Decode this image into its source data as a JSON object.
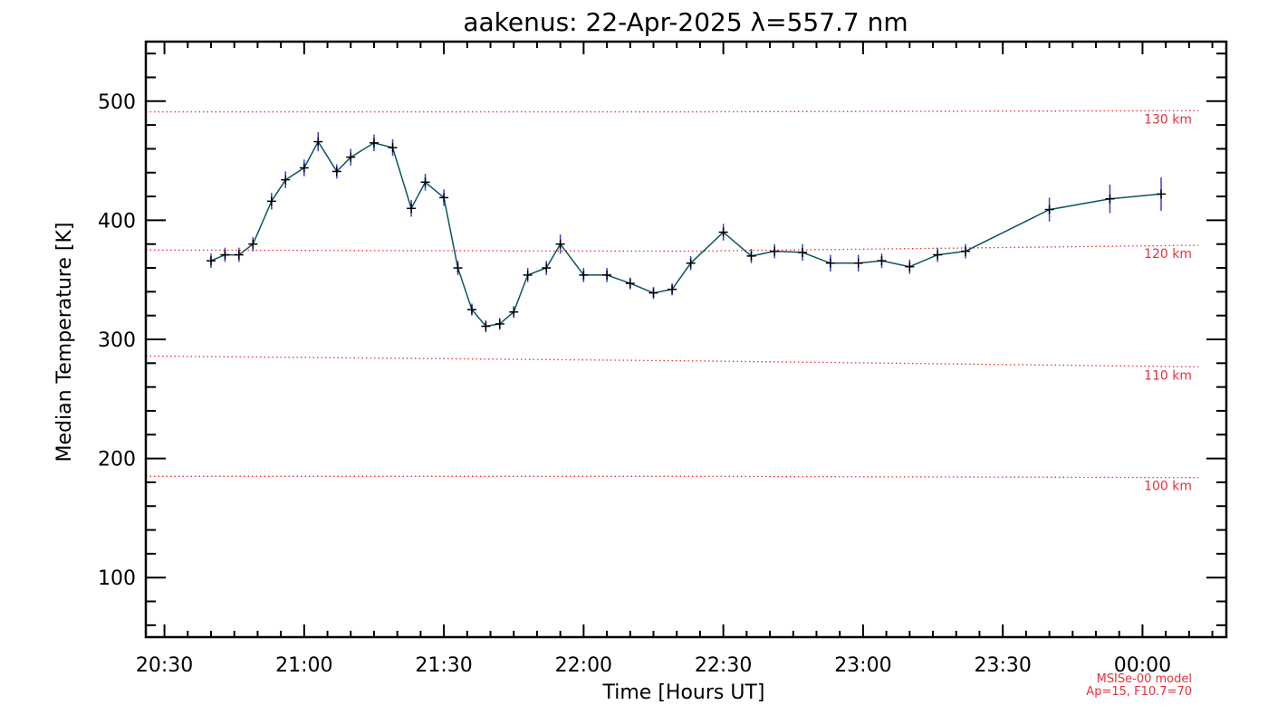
{
  "chart_data": {
    "type": "line",
    "title": "aakenus: 22-Apr-2025 λ=557.7 nm",
    "xlabel": "Time [Hours UT]",
    "ylabel": "Median Temperature [K]",
    "xlim": [
      "20:26",
      "00:18"
    ],
    "ylim": [
      50,
      550
    ],
    "x_ticks": [
      "20:30",
      "21:00",
      "21:30",
      "22:00",
      "22:30",
      "23:00",
      "23:30",
      "00:00"
    ],
    "y_ticks": [
      100,
      200,
      300,
      400,
      500
    ],
    "series": [
      {
        "color": "#0b5560",
        "marker_color": "#000000",
        "errorbar_color": "#3a3fd8",
        "x": [
          "20:40",
          "20:43",
          "20:46",
          "20:49",
          "20:53",
          "20:56",
          "21:00",
          "21:03",
          "21:07",
          "21:10",
          "21:15",
          "21:19",
          "21:23",
          "21:26",
          "21:30",
          "21:33",
          "21:36",
          "21:39",
          "21:42",
          "21:45",
          "21:48",
          "21:52",
          "21:55",
          "22:00",
          "22:05",
          "22:10",
          "22:15",
          "22:19",
          "22:23",
          "22:30",
          "22:36",
          "22:41",
          "22:47",
          "22:53",
          "22:59",
          "23:04",
          "23:10",
          "23:16",
          "23:22",
          "23:40",
          "23:53",
          "00:04"
        ],
        "y": [
          366,
          371,
          371,
          380,
          416,
          434,
          444,
          466,
          441,
          453,
          465,
          461,
          410,
          432,
          419,
          360,
          325,
          311,
          313,
          323,
          354,
          360,
          380,
          354,
          354,
          347,
          339,
          342,
          364,
          390,
          370,
          374,
          373,
          364,
          364,
          366,
          361,
          371,
          374,
          409,
          418,
          422
        ],
        "err": [
          6,
          6,
          6,
          6,
          7,
          7,
          7,
          8,
          6,
          7,
          7,
          7,
          7,
          7,
          7,
          6,
          5,
          5,
          5,
          5,
          6,
          6,
          8,
          6,
          6,
          5,
          5,
          5,
          6,
          7,
          6,
          6,
          7,
          7,
          7,
          6,
          6,
          6,
          6,
          10,
          12,
          14
        ]
      }
    ],
    "reference_lines": [
      {
        "label": "130 km",
        "y": [
          491,
          491,
          492
        ]
      },
      {
        "label": "120 km",
        "y": [
          375,
          374,
          379
        ]
      },
      {
        "label": "110 km",
        "y": [
          286,
          282,
          277
        ]
      },
      {
        "label": "100 km",
        "y": [
          185,
          185,
          184
        ]
      }
    ],
    "reference_color": "#e8313a",
    "grid": false,
    "legend": "none",
    "footnote": [
      "MSISe-00 model",
      "Ap=15, F10.7=70"
    ]
  }
}
